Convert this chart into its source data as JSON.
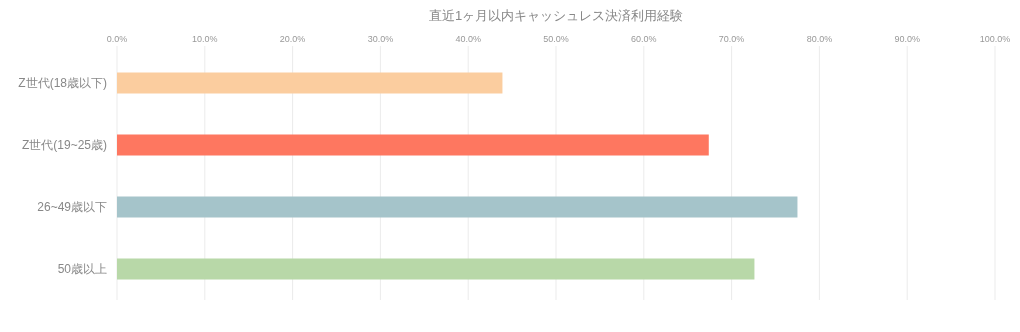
{
  "chart_data": {
    "type": "bar",
    "orientation": "horizontal",
    "title": "直近1ヶ月以内キャッシュレス決済利用経験",
    "categories": [
      "Z世代(18歳以下)",
      "Z世代(19~25歳)",
      "26~49歳以下",
      "50歳以上"
    ],
    "values": [
      43.9,
      67.4,
      77.5,
      72.6
    ],
    "colors": [
      "#fbcd9f",
      "#fe7760",
      "#a5c4ca",
      "#b8d8a8"
    ],
    "xlim": [
      0,
      100
    ],
    "xticks": [
      {
        "value": 0,
        "label": "0.0%"
      },
      {
        "value": 10,
        "label": "10.0%"
      },
      {
        "value": 20,
        "label": "20.0%"
      },
      {
        "value": 30,
        "label": "30.0%"
      },
      {
        "value": 40,
        "label": "40.0%"
      },
      {
        "value": 50,
        "label": "50.0%"
      },
      {
        "value": 60,
        "label": "60.0%"
      },
      {
        "value": 70,
        "label": "70.0%"
      },
      {
        "value": 80,
        "label": "80.0%"
      },
      {
        "value": 90,
        "label": "90.0%"
      },
      {
        "value": 100,
        "label": "100.0%"
      }
    ],
    "grid": "x"
  }
}
